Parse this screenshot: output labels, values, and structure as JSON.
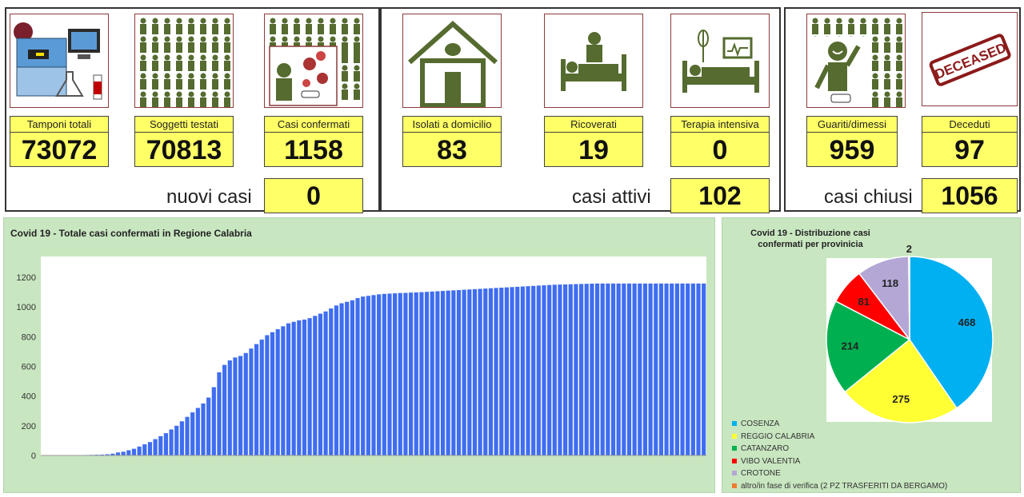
{
  "stats_groups": [
    {
      "tiles": [
        {
          "label": "Tamponi totali",
          "value": "73072",
          "icon": "lab-equipment-icon"
        },
        {
          "label": "Soggetti testati",
          "value": "70813",
          "icon": "people-grid-icon"
        },
        {
          "label": "Casi confermati",
          "value": "1158",
          "icon": "virus-person-icon"
        }
      ],
      "total_label": "nuovi casi",
      "total_value": "0"
    },
    {
      "tiles": [
        {
          "label": "Isolati a domicilio",
          "value": "83",
          "icon": "house-icon"
        },
        {
          "label": "Ricoverati",
          "value": "19",
          "icon": "hospital-bed-icon"
        },
        {
          "label": "Terapia intensiva",
          "value": "0",
          "icon": "intensive-care-icon"
        }
      ],
      "total_label": "casi attivi",
      "total_value": "102"
    },
    {
      "tiles": [
        {
          "label": "Guariti/dimessi",
          "value": "959",
          "icon": "recovered-person-icon"
        },
        {
          "label": "Deceduti",
          "value": "97",
          "icon": "deceased-stamp-icon"
        }
      ],
      "total_label": "casi chiusi",
      "total_value": "1056"
    }
  ],
  "deceased_stamp_text": "DECEASED",
  "colors": {
    "bars": "#3f6df0",
    "highlight": "#ffff66",
    "panel": "#c8e6c0"
  },
  "chart_data": [
    {
      "type": "bar",
      "title": "Covid 19 - Totale casi confermati in Regione Calabria",
      "xlabel": "",
      "ylabel": "",
      "ylim": [
        0,
        1340
      ],
      "yticks": [
        0,
        200,
        400,
        600,
        800,
        1000,
        1200
      ],
      "grid": false,
      "categories_note": "daily dates (rotated labels, illegible)",
      "values": [
        1,
        1,
        1,
        1,
        1,
        1,
        1,
        2,
        3,
        4,
        5,
        6,
        8,
        12,
        20,
        25,
        35,
        45,
        60,
        75,
        90,
        110,
        130,
        150,
        175,
        200,
        230,
        260,
        290,
        320,
        350,
        390,
        460,
        560,
        610,
        640,
        660,
        670,
        690,
        720,
        750,
        780,
        810,
        830,
        850,
        870,
        890,
        900,
        910,
        915,
        925,
        940,
        955,
        970,
        990,
        1010,
        1025,
        1035,
        1045,
        1060,
        1070,
        1075,
        1080,
        1085,
        1088,
        1090,
        1092,
        1094,
        1095,
        1097,
        1098,
        1100,
        1102,
        1104,
        1106,
        1108,
        1110,
        1112,
        1114,
        1116,
        1118,
        1120,
        1122,
        1124,
        1126,
        1128,
        1130,
        1132,
        1134,
        1136,
        1138,
        1140,
        1142,
        1144,
        1146,
        1148,
        1150,
        1151,
        1152,
        1153,
        1154,
        1155,
        1156,
        1157,
        1158,
        1158,
        1158,
        1158,
        1158,
        1158,
        1158,
        1158,
        1158,
        1158,
        1158,
        1158,
        1158,
        1158,
        1158,
        1158,
        1158,
        1158,
        1158,
        1158,
        1158
      ]
    },
    {
      "type": "pie",
      "title": "Covid 19 - Distribuzione casi confermati per provinicia",
      "slices": [
        {
          "name": "COSENZA",
          "value": 468,
          "color": "#00b0f0"
        },
        {
          "name": "REGGIO CALABRIA",
          "value": 275,
          "color": "#ffff33"
        },
        {
          "name": "CATANZARO",
          "value": 214,
          "color": "#00b050"
        },
        {
          "name": "VIBO VALENTIA",
          "value": 81,
          "color": "#ff0000"
        },
        {
          "name": "CROTONE",
          "value": 118,
          "color": "#b4a7d6"
        },
        {
          "name": "altro/in fase di verifica (2 PZ TRASFERITI DA BERGAMO)",
          "value": 2,
          "color": "#ed7d31"
        }
      ],
      "legend_position": "bottom-left"
    }
  ]
}
